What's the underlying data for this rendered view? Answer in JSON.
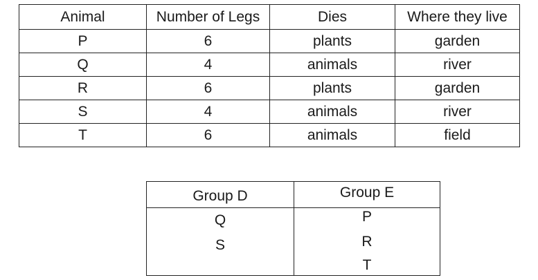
{
  "animal_table": {
    "headers": [
      "Animal",
      "Number of Legs",
      "Dies",
      "Where they live"
    ],
    "rows": [
      [
        "P",
        "6",
        "plants",
        "garden"
      ],
      [
        "Q",
        "4",
        "animals",
        "river"
      ],
      [
        "R",
        "6",
        "plants",
        "garden"
      ],
      [
        "S",
        "4",
        "animals",
        "river"
      ],
      [
        "T",
        "6",
        "animals",
        "field"
      ]
    ]
  },
  "group_table": {
    "group_d": {
      "header": "Group D",
      "members": [
        "Q",
        "S"
      ]
    },
    "group_e": {
      "header": "Group E",
      "members": [
        "P",
        "R",
        "T"
      ]
    }
  }
}
